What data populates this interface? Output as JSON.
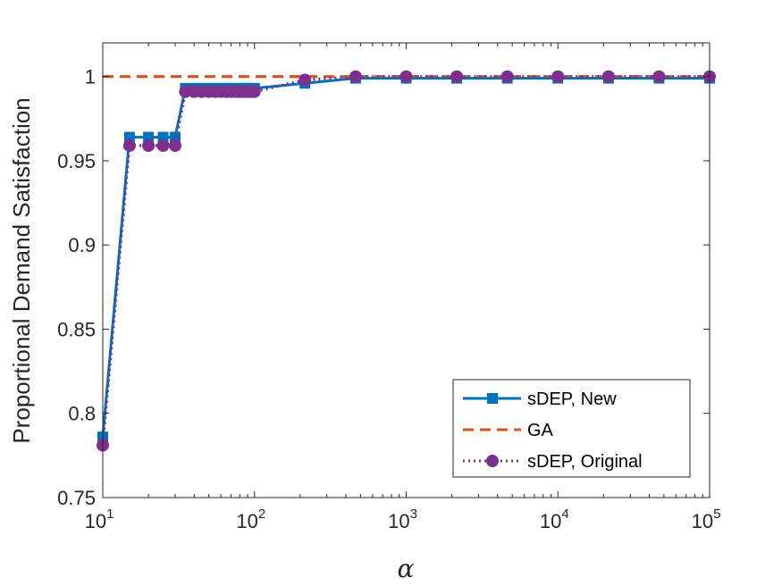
{
  "chart_data": {
    "type": "line",
    "xscale": "log",
    "xlim": [
      10,
      100000
    ],
    "ylim": [
      0.75,
      1.02
    ],
    "xticks": [
      {
        "base": "10",
        "exp": "1"
      },
      {
        "base": "10",
        "exp": "2"
      },
      {
        "base": "10",
        "exp": "3"
      },
      {
        "base": "10",
        "exp": "4"
      },
      {
        "base": "10",
        "exp": "5"
      }
    ],
    "yticks": [
      "0.75",
      "0.8",
      "0.85",
      "0.9",
      "0.95",
      "1"
    ],
    "ytick_values": [
      0.75,
      0.8,
      0.85,
      0.9,
      0.95,
      1.0
    ],
    "xtick_values": [
      10,
      100,
      1000,
      10000,
      100000
    ],
    "xlabel": "α",
    "ylabel": "Proportional Demand Satisfaction",
    "legend_position": "bottom-right",
    "grid": false,
    "series": [
      {
        "name": "sDEP, New",
        "color": "#0072BD",
        "line_style": "solid",
        "marker": "square",
        "x": [
          10,
          15,
          20,
          25,
          30,
          35,
          40,
          45,
          50,
          55,
          60,
          65,
          70,
          75,
          80,
          85,
          90,
          95,
          100,
          215,
          464,
          1000,
          2154,
          4642,
          10000,
          21544,
          46416,
          100000
        ],
        "y": [
          0.786,
          0.964,
          0.964,
          0.964,
          0.964,
          0.993,
          0.993,
          0.993,
          0.993,
          0.993,
          0.993,
          0.993,
          0.993,
          0.993,
          0.993,
          0.993,
          0.993,
          0.993,
          0.993,
          0.996,
          0.999,
          0.999,
          0.999,
          0.999,
          0.999,
          0.999,
          0.999,
          0.999
        ]
      },
      {
        "name": "GA",
        "color": "#D95319",
        "line_style": "dashed",
        "marker": "none",
        "x": [
          10,
          100000
        ],
        "y": [
          1.0,
          1.0
        ]
      },
      {
        "name": "sDEP, Original",
        "color": "#7E2F8E",
        "line_style": "dotted",
        "marker": "circle",
        "x": [
          10,
          15,
          20,
          25,
          30,
          35,
          40,
          45,
          50,
          55,
          60,
          65,
          70,
          75,
          80,
          85,
          90,
          95,
          100,
          215,
          464,
          1000,
          2154,
          4642,
          10000,
          21544,
          46416,
          100000
        ],
        "y": [
          0.781,
          0.959,
          0.959,
          0.959,
          0.959,
          0.991,
          0.991,
          0.991,
          0.991,
          0.991,
          0.991,
          0.991,
          0.991,
          0.991,
          0.991,
          0.991,
          0.991,
          0.991,
          0.991,
          0.998,
          1.0,
          1.0,
          1.0,
          1.0,
          1.0,
          1.0,
          1.0,
          1.0
        ]
      }
    ]
  }
}
